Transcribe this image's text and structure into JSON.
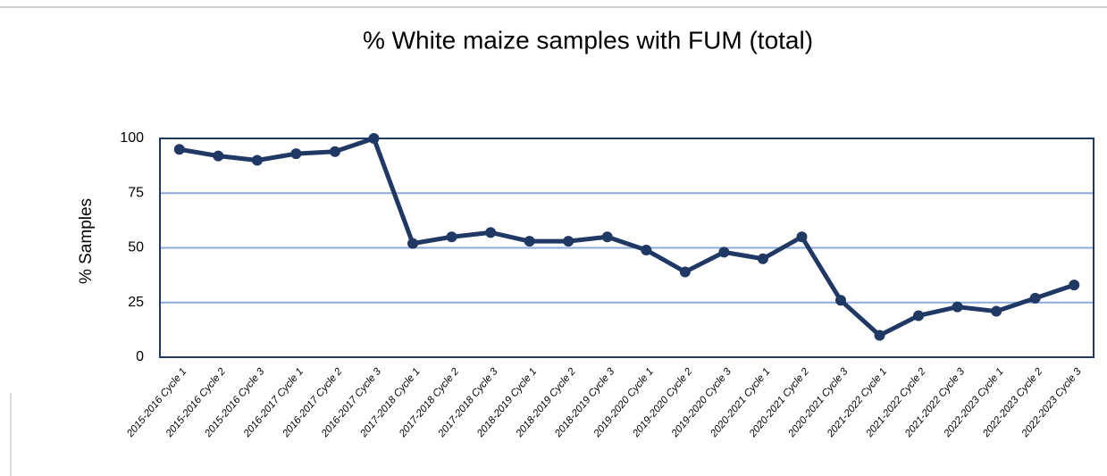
{
  "chart_data": {
    "type": "line",
    "title": "% White maize samples with FUM (total)",
    "y_label": "% Samples",
    "categories": [
      "2015-2016 Cycle 1",
      "2015-2016 Cycle 2",
      "2015-2016 Cycle 3",
      "2016-2017 Cycle 1",
      "2016-2017 Cycle 2",
      "2016-2017 Cycle 3",
      "2017-2018 Cycle 1",
      "2017-2018 Cycle 2",
      "2017-2018 Cycle 3",
      "2018-2019 Cycle 1",
      "2018-2019 Cycle 2",
      "2018-2019 Cycle 3",
      "2019-2020 Cycle 1",
      "2019-2020 Cycle 2",
      "2019-2020 Cycle 3",
      "2020-2021 Cycle 1",
      "2020-2021 Cycle 2",
      "2020-2021 Cycle 3",
      "2021-2022 Cycle 1",
      "2021-2022 Cycle 2",
      "2021-2022 Cycle 3",
      "2022-2023 Cycle 1",
      "2022-2023 Cycle 2",
      "2022-2023 Cycle 3"
    ],
    "values": [
      95,
      92,
      90,
      93,
      94,
      100,
      52,
      55,
      57,
      53,
      53,
      55,
      49,
      39,
      48,
      45,
      55,
      26,
      10,
      19,
      23,
      21,
      27,
      33
    ],
    "color": "#203864",
    "ylim": [
      0,
      100
    ],
    "yticks": [
      0,
      25,
      50,
      75,
      100
    ],
    "grid": true
  }
}
